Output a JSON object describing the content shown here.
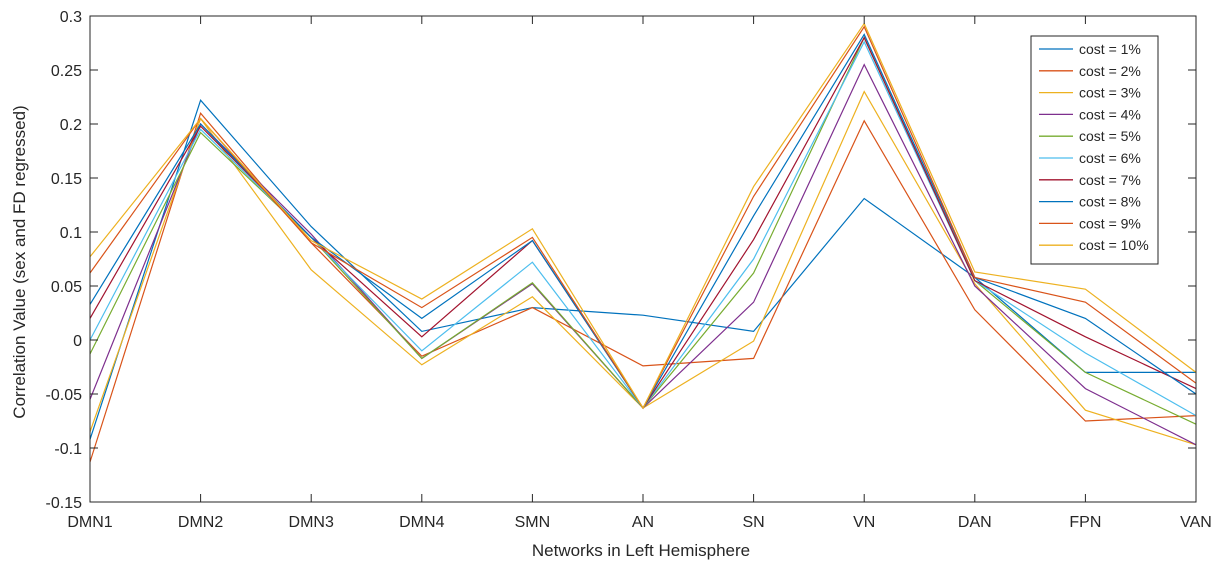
{
  "chart_data": {
    "type": "line",
    "title": "",
    "xlabel": "Networks in Left Hemisphere",
    "ylabel": "Correlation Value (sex and FD regressed)",
    "ylim": [
      -0.15,
      0.3
    ],
    "yticks": [
      "-0.15",
      "-0.1",
      "-0.05",
      "0",
      "0.05",
      "0.1",
      "0.15",
      "0.2",
      "0.25",
      "0.3"
    ],
    "categories": [
      "DMN1",
      "DMN2",
      "DMN3",
      "DMN4",
      "SMN",
      "AN",
      "SN",
      "VN",
      "DAN",
      "FPN",
      "VAN"
    ],
    "grid": false,
    "legend_position": "top-right",
    "series": [
      {
        "name": "cost = 1%",
        "color": "#0072BD",
        "values": [
          -0.092,
          0.222,
          0.105,
          0.008,
          0.03,
          0.023,
          0.008,
          0.131,
          0.058,
          -0.03,
          -0.03
        ]
      },
      {
        "name": "cost = 2%",
        "color": "#D95319",
        "values": [
          -0.113,
          0.21,
          0.09,
          -0.015,
          0.03,
          -0.024,
          -0.017,
          0.203,
          0.028,
          -0.075,
          -0.07
        ]
      },
      {
        "name": "cost = 3%",
        "color": "#EDB120",
        "values": [
          -0.085,
          0.205,
          0.065,
          -0.023,
          0.04,
          -0.063,
          -0.001,
          0.23,
          0.052,
          -0.065,
          -0.097
        ]
      },
      {
        "name": "cost = 4%",
        "color": "#7E2F8E",
        "values": [
          -0.055,
          0.2,
          0.098,
          -0.017,
          0.052,
          -0.063,
          0.035,
          0.255,
          0.05,
          -0.045,
          -0.097
        ]
      },
      {
        "name": "cost = 5%",
        "color": "#77AC30",
        "values": [
          -0.013,
          0.192,
          0.095,
          -0.017,
          0.053,
          -0.063,
          0.062,
          0.28,
          0.055,
          -0.03,
          -0.078
        ]
      },
      {
        "name": "cost = 6%",
        "color": "#4DBEEE",
        "values": [
          0.0,
          0.195,
          0.095,
          -0.01,
          0.072,
          -0.063,
          0.075,
          0.276,
          0.055,
          -0.012,
          -0.07
        ]
      },
      {
        "name": "cost = 7%",
        "color": "#A2142F",
        "values": [
          0.02,
          0.198,
          0.095,
          0.003,
          0.092,
          -0.063,
          0.093,
          0.28,
          0.055,
          0.003,
          -0.045
        ]
      },
      {
        "name": "cost = 8%",
        "color": "#0072BD",
        "values": [
          0.033,
          0.2,
          0.095,
          0.02,
          0.092,
          -0.063,
          0.115,
          0.283,
          0.058,
          0.02,
          -0.05
        ]
      },
      {
        "name": "cost = 9%",
        "color": "#D95319",
        "values": [
          0.062,
          0.205,
          0.09,
          0.03,
          0.095,
          -0.063,
          0.133,
          0.29,
          0.058,
          0.035,
          -0.04
        ]
      },
      {
        "name": "cost = 10%",
        "color": "#EDB120",
        "values": [
          0.077,
          0.205,
          0.092,
          0.038,
          0.103,
          -0.063,
          0.142,
          0.293,
          0.063,
          0.047,
          -0.03
        ]
      }
    ]
  }
}
